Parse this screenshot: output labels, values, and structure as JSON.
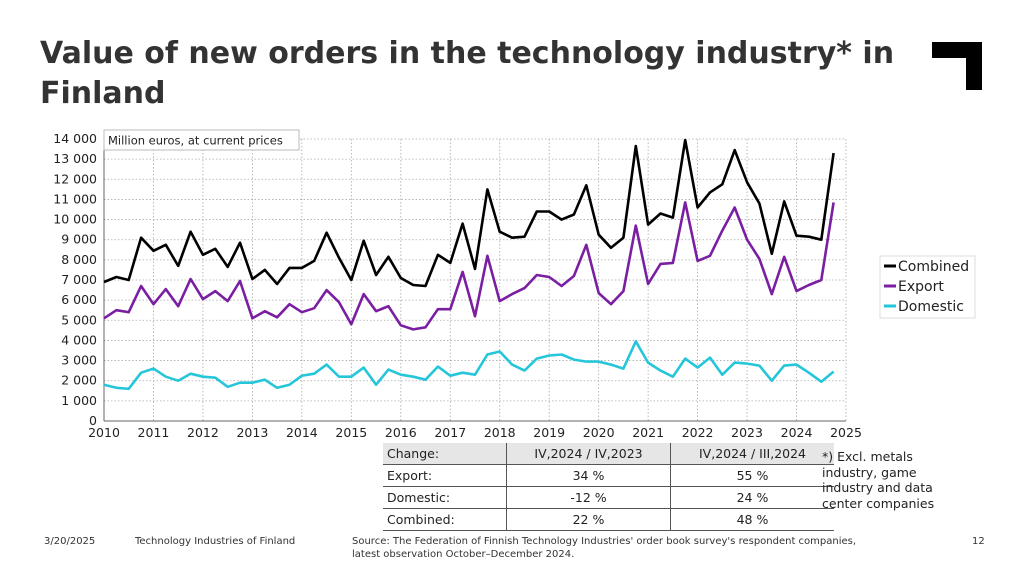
{
  "title": "Value of new orders in the technology industry* in Finland",
  "colors": {
    "combined": "#000000",
    "export": "#7b1fa2",
    "domestic": "#26c6da"
  },
  "chart_data": {
    "type": "line",
    "annotation": "Million euros, at current prices",
    "ylim": [
      0,
      14000
    ],
    "yticks": [
      0,
      1000,
      2000,
      3000,
      4000,
      5000,
      6000,
      7000,
      8000,
      9000,
      10000,
      11000,
      12000,
      13000,
      14000
    ],
    "ytick_labels": [
      "0",
      "1 000",
      "2 000",
      "3 000",
      "4 000",
      "5 000",
      "6 000",
      "7 000",
      "8 000",
      "9 000",
      "10 000",
      "11 000",
      "12 000",
      "13 000",
      "14 000"
    ],
    "xlim": [
      2010,
      2025
    ],
    "xticks": [
      "2010",
      "2011",
      "2012",
      "2013",
      "2014",
      "2015",
      "2016",
      "2017",
      "2018",
      "2019",
      "2020",
      "2021",
      "2022",
      "2023",
      "2024",
      "2025"
    ],
    "x_start": 2010,
    "x_step": 0.25,
    "series": [
      {
        "name": "Combined",
        "color": "#000000",
        "values": [
          6900,
          7150,
          7000,
          9100,
          8450,
          8750,
          7700,
          9400,
          8250,
          8550,
          7650,
          8850,
          7050,
          7500,
          6800,
          7600,
          7600,
          7950,
          9350,
          8100,
          7000,
          8950,
          7250,
          8150,
          7100,
          6750,
          6700,
          8250,
          7850,
          9800,
          7550,
          11500,
          9400,
          9100,
          9150,
          10400,
          10400,
          10000,
          10250,
          11700,
          9250,
          8600,
          9100,
          13650,
          9750,
          10300,
          10100,
          13950,
          10600,
          11350,
          11750,
          13450,
          11850,
          10800,
          8300,
          10900,
          9200,
          9150,
          9000,
          13300
        ]
      },
      {
        "name": "Export",
        "color": "#7b1fa2",
        "values": [
          5100,
          5500,
          5400,
          6700,
          5800,
          6550,
          5700,
          7050,
          6050,
          6450,
          5950,
          6950,
          5100,
          5450,
          5150,
          5800,
          5400,
          5600,
          6500,
          5900,
          4800,
          6300,
          5450,
          5700,
          4750,
          4550,
          4650,
          5550,
          5550,
          7400,
          5200,
          8200,
          5950,
          6300,
          6600,
          7250,
          7150,
          6700,
          7200,
          8750,
          6350,
          5800,
          6450,
          9700,
          6800,
          7800,
          7850,
          10850,
          7950,
          8200,
          9450,
          10600,
          9000,
          8050,
          6300,
          8150,
          6450,
          6750,
          7000,
          10850
        ]
      },
      {
        "name": "Domestic",
        "color": "#26c6da",
        "values": [
          1800,
          1650,
          1600,
          2400,
          2600,
          2200,
          2000,
          2350,
          2200,
          2150,
          1700,
          1900,
          1900,
          2050,
          1650,
          1800,
          2250,
          2350,
          2800,
          2200,
          2200,
          2650,
          1800,
          2550,
          2300,
          2200,
          2050,
          2700,
          2250,
          2400,
          2300,
          3300,
          3450,
          2800,
          2500,
          3100,
          3250,
          3300,
          3050,
          2950,
          2950,
          2800,
          2600,
          3950,
          2900,
          2500,
          2200,
          3100,
          2650,
          3150,
          2300,
          2900,
          2850,
          2750,
          2000,
          2750,
          2800,
          2400,
          1950,
          2450
        ]
      }
    ],
    "legend": {
      "position": "right",
      "labels": [
        "Combined",
        "Export",
        "Domestic"
      ]
    }
  },
  "change_table": {
    "header": [
      "Change:",
      "IV,2024 / IV,2023",
      "IV,2024 / III,2024"
    ],
    "rows": [
      [
        "Export:",
        "34 %",
        "55 %"
      ],
      [
        "Domestic:",
        "-12 %",
        "24 %"
      ],
      [
        "Combined:",
        "22 %",
        "48 %"
      ]
    ]
  },
  "footnote": "*) Excl. metals industry, game industry and data center companies",
  "footer": {
    "date": "3/20/2025",
    "organization": "Technology Industries of Finland",
    "source": "Source: The Federation of Finnish Technology Industries' order book survey's respondent companies, latest observation October–December 2024.",
    "page": "12"
  }
}
